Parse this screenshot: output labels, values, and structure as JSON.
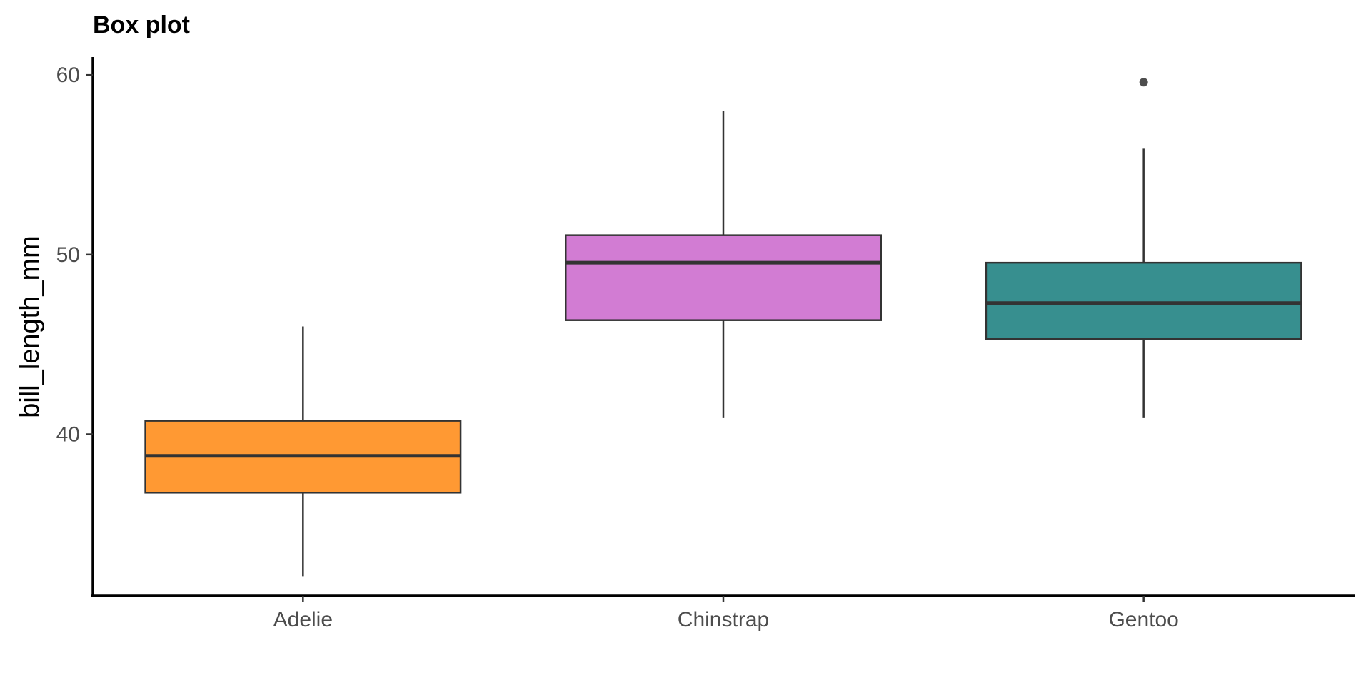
{
  "chart_data": {
    "type": "box",
    "title": "Box plot",
    "xlabel": "",
    "ylabel": "bill_length_mm",
    "ylim": [
      31,
      61
    ],
    "yticks": [
      40,
      50,
      60
    ],
    "grid": false,
    "legend": "none",
    "categories": [
      "Adelie",
      "Chinstrap",
      "Gentoo"
    ],
    "boxes": [
      {
        "category": "Adelie",
        "color": "#FF9933",
        "whisker_low": 32.1,
        "q1": 36.75,
        "median": 38.8,
        "q3": 40.75,
        "whisker_high": 46.0,
        "outliers": []
      },
      {
        "category": "Chinstrap",
        "color": "#D27CD3",
        "whisker_low": 40.9,
        "q1": 46.35,
        "median": 49.55,
        "q3": 51.08,
        "whisker_high": 58.0,
        "outliers": []
      },
      {
        "category": "Gentoo",
        "color": "#378F8F",
        "whisker_low": 40.9,
        "q1": 45.3,
        "median": 47.3,
        "q3": 49.55,
        "whisker_high": 55.9,
        "outliers": [
          59.6
        ]
      }
    ]
  }
}
